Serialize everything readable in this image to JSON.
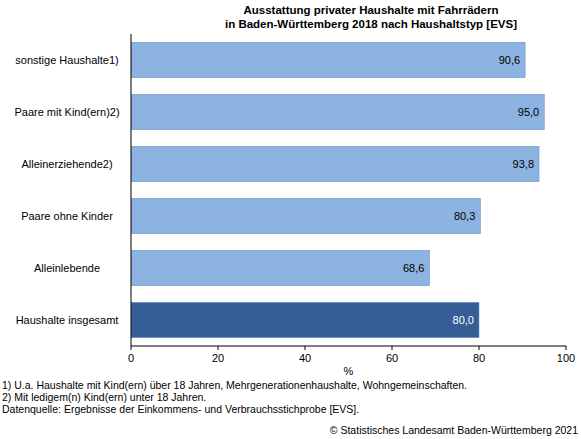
{
  "chart_data": {
    "type": "bar",
    "orientation": "horizontal",
    "title": "Ausstattung privater Haushalte mit Fahrrädern",
    "subtitle": "in Baden-Württemberg 2018 nach Haushaltstyp [EVS]",
    "categories": [
      "sonstige Haushalte1)",
      "Paare mit Kind(ern)2)",
      "Alleinerziehende2)",
      "Paare ohne Kinder",
      "Alleinlebende",
      "Haushalte insgesamt"
    ],
    "values": [
      90.6,
      95.0,
      93.8,
      80.3,
      68.6,
      80.0
    ],
    "value_labels": [
      "90,6",
      "95,0",
      "93,8",
      "80,3",
      "68,6",
      "80,0"
    ],
    "colors": [
      "#8db3e2",
      "#8db3e2",
      "#8db3e2",
      "#8db3e2",
      "#8db3e2",
      "#345e95"
    ],
    "data_labels": true,
    "grid": false,
    "xlabel": "%",
    "xlim": [
      0,
      100
    ],
    "xticks": [
      0,
      20,
      40,
      60,
      80,
      100
    ],
    "notes": [
      "1) U.a. Haushalte mit Kind(ern) über 18 Jahren, Mehrgenerationenhaushalte, Wohngemeinschaften.",
      "2) Mit ledigem(n) Kind(ern) unter 18 Jahren.",
      "Datenquelle: Ergebnisse der Einkommens- und Verbrauchsstichprobe [EVS]."
    ],
    "copyright": "© Statistisches Landesamt Baden-Württemberg 2021"
  }
}
